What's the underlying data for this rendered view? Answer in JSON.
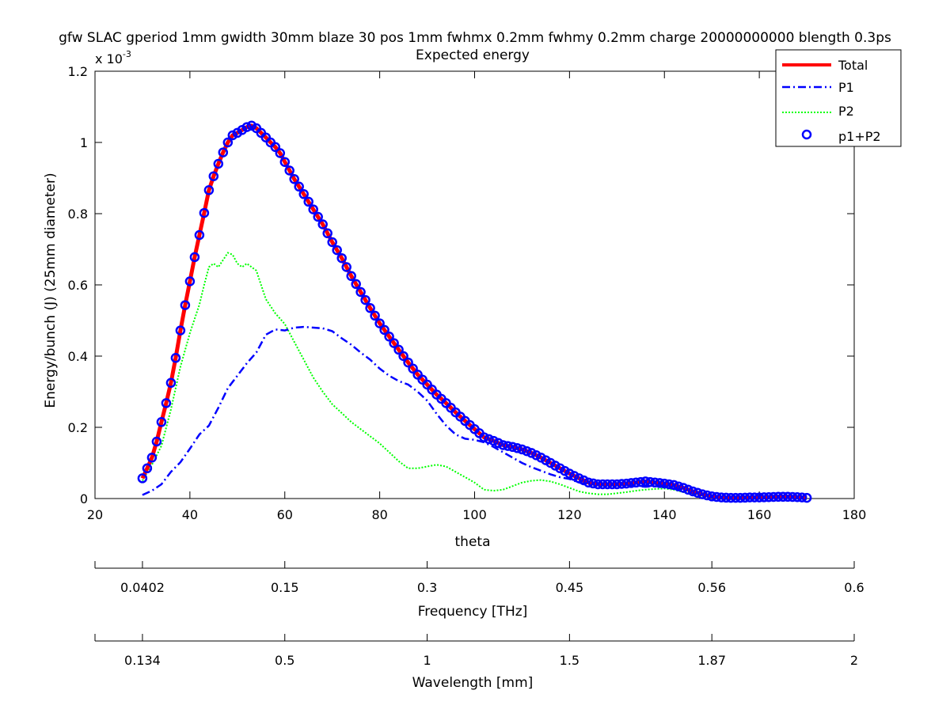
{
  "chart_data": {
    "type": "line",
    "title": "gfw SLAC gperiod 1mm gwidth 30mm blaze 30 pos 1mm fwhmx 0.2mm fwhmy 0.2mm charge 20000000000 blength 0.3ps",
    "subtitle": "Expected energy",
    "xlabel": "theta",
    "ylabel": "Energy/bunch (J) (25mm diameter)",
    "y_multiplier_base": "x 10",
    "y_multiplier_exp": "-3",
    "xlim": [
      20,
      180
    ],
    "ylim": [
      0,
      0.0012
    ],
    "x_ticks": [
      20,
      40,
      60,
      80,
      100,
      120,
      140,
      160,
      180
    ],
    "x_tick_labels": [
      "20",
      "40",
      "60",
      "80",
      "100",
      "120",
      "140",
      "160",
      "180"
    ],
    "y_ticks": [
      0,
      0.0002,
      0.0004,
      0.0006,
      0.0008,
      0.001,
      0.0012
    ],
    "y_tick_labels": [
      "0",
      "0.2",
      "0.4",
      "0.6",
      "0.8",
      "1",
      "1.2"
    ],
    "grid": false,
    "legend_position": "top-right",
    "secondary_axes": [
      {
        "label": "Frequency [THz]",
        "tick_positions_theta": [
          30,
          60,
          90,
          120,
          150,
          180
        ],
        "tick_labels": [
          "0.0402",
          "0.15",
          "0.3",
          "0.45",
          "0.56",
          "0.6"
        ]
      },
      {
        "label": "Wavelength [mm]",
        "tick_positions_theta": [
          30,
          60,
          90,
          120,
          150,
          180
        ],
        "tick_labels": [
          "0.134",
          "0.5",
          "1",
          "1.5",
          "1.87",
          "2"
        ]
      }
    ],
    "series": [
      {
        "name": "Total",
        "color": "#ff0000",
        "style": "solid-thick",
        "x": [
          30,
          31,
          32,
          33,
          34,
          35,
          36,
          37,
          38,
          39,
          40,
          41,
          42,
          43,
          44,
          45,
          46,
          47,
          48,
          49,
          50,
          51,
          52,
          53,
          54,
          55,
          56,
          57,
          58,
          59,
          60,
          62,
          64,
          66,
          68,
          70,
          72,
          74,
          76,
          78,
          80,
          82,
          84,
          86,
          88,
          90,
          92,
          94,
          96,
          98,
          100,
          102,
          104,
          106,
          108,
          110,
          112,
          114,
          116,
          118,
          120,
          122,
          124,
          126,
          128,
          130,
          132,
          134,
          136,
          138,
          140,
          142,
          144,
          146,
          148,
          150,
          152,
          154,
          156,
          158,
          160,
          162,
          164,
          166,
          168,
          170
        ],
        "y": [
          5.7e-05,
          8.5e-05,
          0.000115,
          0.00016,
          0.000215,
          0.000268,
          0.000325,
          0.000395,
          0.000472,
          0.000543,
          0.00061,
          0.000678,
          0.00074,
          0.000802,
          0.000866,
          0.000905,
          0.00094,
          0.000972,
          0.001,
          0.00102,
          0.001027,
          0.001035,
          0.001043,
          0.001047,
          0.00104,
          0.001027,
          0.001014,
          0.001,
          0.000987,
          0.00097,
          0.000945,
          0.000897,
          0.000855,
          0.000812,
          0.00077,
          0.00072,
          0.000675,
          0.000625,
          0.00058,
          0.000535,
          0.000492,
          0.000455,
          0.000418,
          0.000382,
          0.000348,
          0.00032,
          0.000292,
          0.000268,
          0.000242,
          0.000218,
          0.000195,
          0.000172,
          0.000162,
          0.00015,
          0.000145,
          0.000138,
          0.000128,
          0.000115,
          0.0001,
          8.5e-05,
          7e-05,
          5.7e-05,
          4.5e-05,
          4e-05,
          4e-05,
          4e-05,
          4.2e-05,
          4.5e-05,
          4.8e-05,
          4.5e-05,
          4.2e-05,
          3.8e-05,
          3e-05,
          2e-05,
          1.2e-05,
          6e-06,
          3e-06,
          2e-06,
          2e-06,
          3e-06,
          3e-06,
          4e-06,
          5e-06,
          5e-06,
          4e-06,
          2e-06
        ]
      },
      {
        "name": "P1",
        "color": "#0000ff",
        "style": "dash-dot",
        "x": [
          30,
          32,
          34,
          36,
          38,
          40,
          42,
          44,
          46,
          48,
          50,
          52,
          54,
          56,
          58,
          60,
          62,
          64,
          66,
          68,
          70,
          72,
          74,
          76,
          78,
          80,
          82,
          84,
          86,
          88,
          90,
          92,
          94,
          96,
          98,
          100,
          102,
          104,
          106,
          108,
          110,
          112,
          114,
          116,
          118,
          120,
          122,
          124,
          126,
          128,
          130,
          132,
          134,
          136,
          138,
          140,
          142,
          144,
          146,
          148,
          150,
          152,
          154,
          156,
          158,
          160,
          162,
          164,
          166,
          168,
          170
        ],
        "y": [
          1e-05,
          2.2e-05,
          4e-05,
          7.5e-05,
          0.000102,
          0.00014,
          0.00018,
          0.000205,
          0.000255,
          0.00031,
          0.000345,
          0.00038,
          0.00041,
          0.00046,
          0.000475,
          0.000472,
          0.00048,
          0.000482,
          0.00048,
          0.000478,
          0.00047,
          0.00045,
          0.000432,
          0.00041,
          0.00039,
          0.000365,
          0.000345,
          0.00033,
          0.00032,
          0.0003,
          0.000275,
          0.000238,
          0.000205,
          0.00018,
          0.000168,
          0.000165,
          0.000158,
          0.000145,
          0.00013,
          0.000115,
          0.0001,
          8.8e-05,
          7.8e-05,
          6.8e-05,
          6e-05,
          5.5e-05,
          4.5e-05,
          4e-05,
          3.8e-05,
          3.8e-05,
          3.8e-05,
          3.8e-05,
          3.5e-05,
          3.3e-05,
          3.5e-05,
          3.5e-05,
          3e-05,
          2.2e-05,
          1.5e-05,
          1e-05,
          5e-06,
          3e-06,
          2e-06,
          2e-06,
          3e-06,
          4e-06,
          4e-06,
          4e-06,
          4e-06,
          3e-06,
          2e-06
        ]
      },
      {
        "name": "P2",
        "color": "#00ff00",
        "style": "dotted",
        "x": [
          30,
          32,
          34,
          36,
          38,
          40,
          42,
          43,
          44,
          45,
          46,
          47,
          48,
          49,
          50,
          51,
          52,
          53,
          54,
          56,
          58,
          60,
          62,
          64,
          66,
          68,
          70,
          72,
          74,
          76,
          78,
          80,
          82,
          84,
          86,
          88,
          90,
          92,
          94,
          96,
          98,
          100,
          102,
          104,
          106,
          108,
          110,
          112,
          114,
          116,
          118,
          120,
          122,
          124,
          126,
          128,
          130,
          132,
          134,
          136,
          138,
          140,
          142,
          144,
          146,
          148,
          150,
          152,
          154,
          156,
          158,
          160,
          162,
          164,
          166,
          168,
          170
        ],
        "y": [
          5e-05,
          9.5e-05,
          0.000148,
          0.00025,
          0.00037,
          0.000465,
          0.000545,
          0.0006,
          0.00065,
          0.00066,
          0.00065,
          0.00067,
          0.00069,
          0.000685,
          0.00066,
          0.00065,
          0.00066,
          0.00065,
          0.00064,
          0.00056,
          0.00052,
          0.00049,
          0.00044,
          0.00039,
          0.00034,
          0.0003,
          0.000265,
          0.00024,
          0.000215,
          0.000195,
          0.000175,
          0.000155,
          0.00013,
          0.000105,
          8.5e-05,
          8.5e-05,
          9e-05,
          9.5e-05,
          9e-05,
          7.5e-05,
          6e-05,
          4.5e-05,
          2.5e-05,
          2.2e-05,
          2.5e-05,
          3.5e-05,
          4.5e-05,
          5e-05,
          5.2e-05,
          4.8e-05,
          4e-05,
          3e-05,
          2e-05,
          1.5e-05,
          1.2e-05,
          1.2e-05,
          1.5e-05,
          1.8e-05,
          2.2e-05,
          2.5e-05,
          2.7e-05,
          2.8e-05,
          2.5e-05,
          1.8e-05,
          1.2e-05,
          8e-06,
          4e-06,
          2e-06,
          2e-06,
          2e-06,
          2e-06,
          3e-06,
          4e-06,
          4e-06,
          3e-06,
          3e-06,
          2e-06
        ]
      },
      {
        "name": "p1+P2",
        "color": "#0000ff",
        "style": "circle-markers",
        "x_start": 30,
        "x_end": 170,
        "x_step": 1,
        "same_as": "Total"
      }
    ]
  }
}
